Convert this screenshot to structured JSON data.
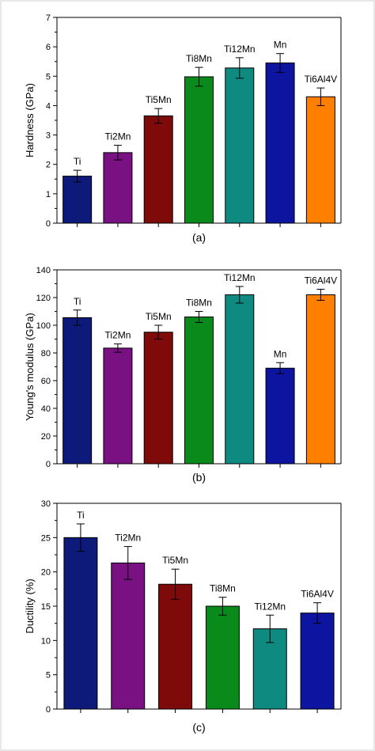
{
  "chart_data": [
    {
      "type": "bar",
      "panel_label": "(a)",
      "ylabel": "Hardness (GPa)",
      "xlabel": "",
      "ylim": [
        0,
        7
      ],
      "yticks": [
        0,
        1,
        2,
        3,
        4,
        5,
        6,
        7
      ],
      "grid": false,
      "categories": [
        "Ti",
        "Ti2Mn",
        "Ti5Mn",
        "Ti8Mn",
        "Ti12Mn",
        "Mn",
        "Ti6Al4V"
      ],
      "values": [
        1.6,
        2.4,
        3.65,
        4.98,
        5.28,
        5.45,
        4.3
      ],
      "errors": [
        0.2,
        0.25,
        0.25,
        0.32,
        0.35,
        0.32,
        0.3
      ],
      "colors": [
        "#0e1a7a",
        "#7a1183",
        "#7e0a0a",
        "#0b8a1c",
        "#0f8a80",
        "#0c14a0",
        "#ff7f00"
      ]
    },
    {
      "type": "bar",
      "panel_label": "(b)",
      "ylabel": "Young's modulus (GPa)",
      "xlabel": "",
      "ylim": [
        0,
        140
      ],
      "yticks": [
        0,
        20,
        40,
        60,
        80,
        100,
        120,
        140
      ],
      "grid": false,
      "categories": [
        "Ti",
        "Ti2Mn",
        "Ti5Mn",
        "Ti8Mn",
        "Ti12Mn",
        "Mn",
        "Ti6Al4V"
      ],
      "values": [
        105.5,
        83.5,
        95,
        106,
        122,
        69,
        122
      ],
      "errors": [
        5.5,
        3,
        5,
        4,
        6,
        4,
        4
      ],
      "colors": [
        "#0e1a7a",
        "#7a1183",
        "#7e0a0a",
        "#0b8a1c",
        "#0f8a80",
        "#0c14a0",
        "#ff7f00"
      ]
    },
    {
      "type": "bar",
      "panel_label": "(c)",
      "ylabel": "Ductility (%)",
      "xlabel": "",
      "ylim": [
        0,
        30
      ],
      "yticks": [
        0,
        5,
        10,
        15,
        20,
        25,
        30
      ],
      "grid": false,
      "categories": [
        "Ti",
        "Ti2Mn",
        "Ti5Mn",
        "Ti8Mn",
        "Ti12Mn",
        "Ti6Al4V"
      ],
      "values": [
        25,
        21.3,
        18.2,
        15,
        11.7,
        14
      ],
      "errors": [
        2,
        2.4,
        2.2,
        1.3,
        2,
        1.5
      ],
      "colors": [
        "#0e1a7a",
        "#7a1183",
        "#7e0a0a",
        "#0b8a1c",
        "#0f8a80",
        "#0c14a0"
      ]
    }
  ]
}
